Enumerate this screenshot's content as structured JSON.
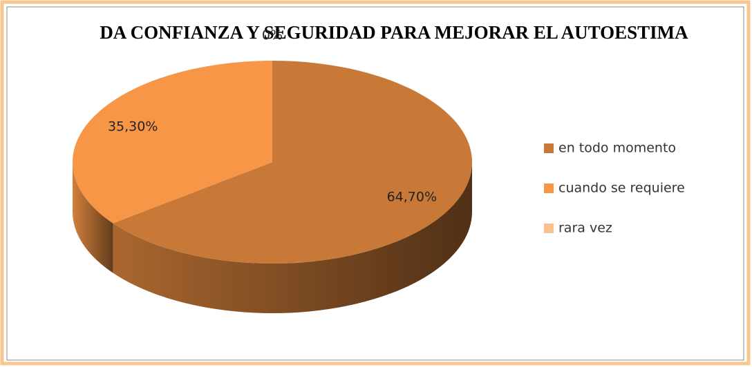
{
  "chart_data": {
    "type": "pie",
    "title": "DA CONFIANZA Y SEGURIDAD PARA MEJORAR EL AUTOESTIMA",
    "categories": [
      "en todo momento",
      "cuando se requiere",
      "rara vez"
    ],
    "values": [
      64.7,
      35.3,
      0
    ],
    "value_labels": [
      "64,70%",
      "35,30%",
      "0%"
    ],
    "colors": [
      "#c87937",
      "#f79646",
      "#fac090"
    ],
    "legend": "right"
  }
}
